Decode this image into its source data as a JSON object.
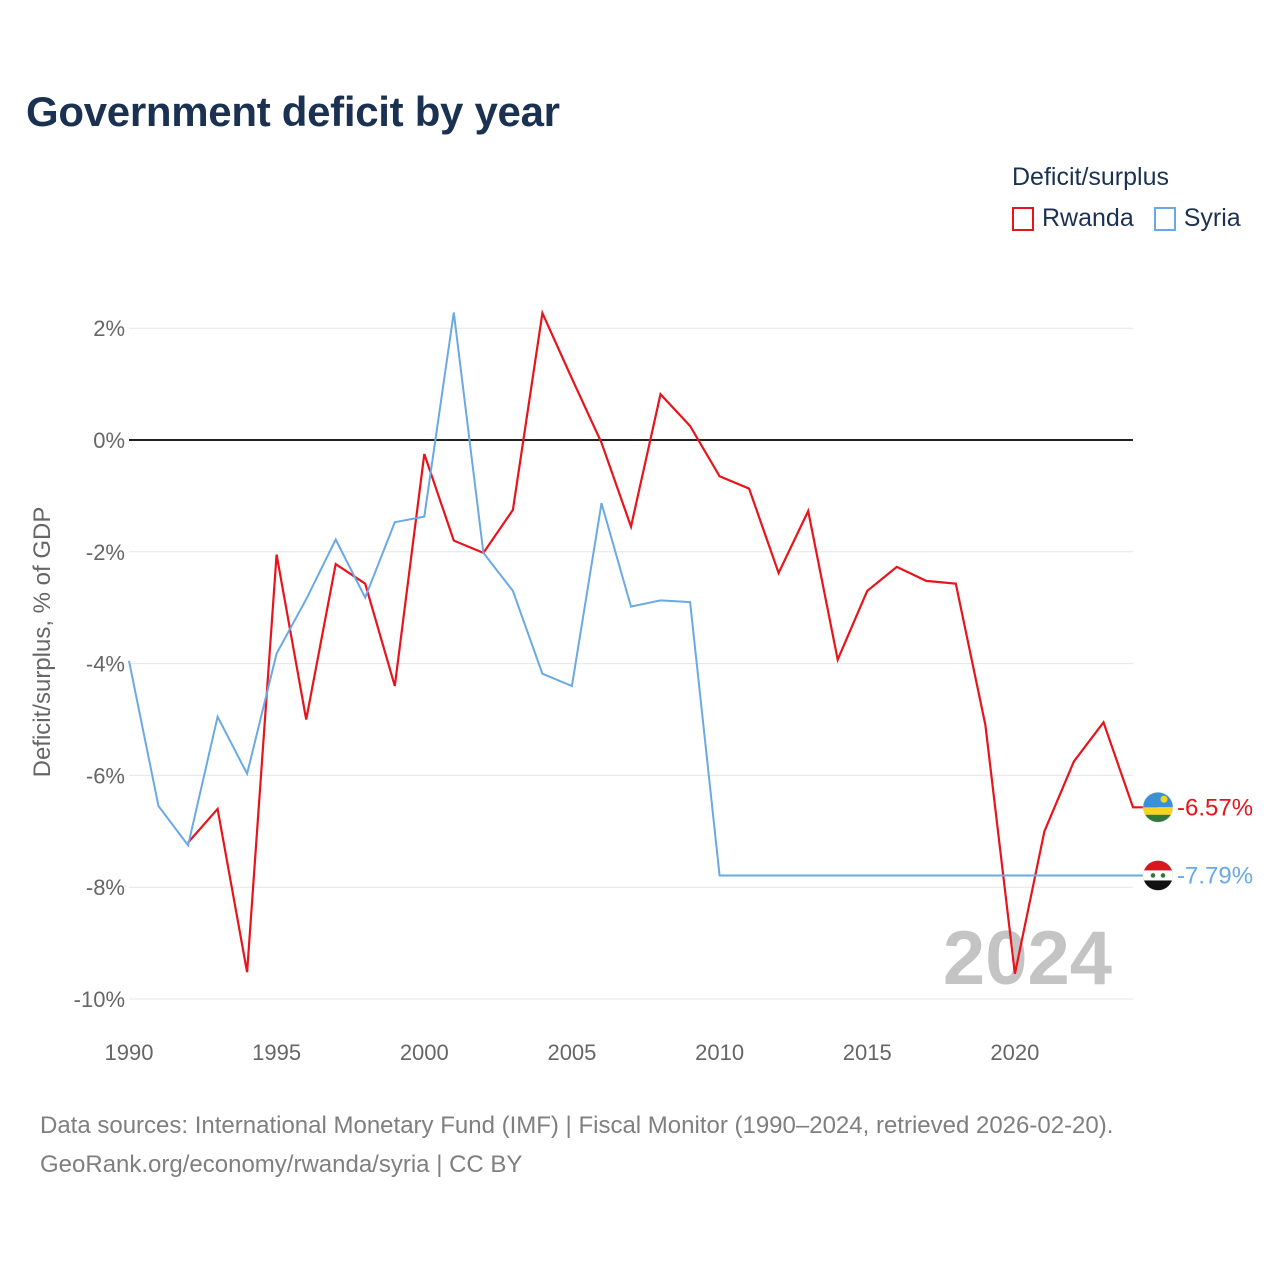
{
  "title": "Government deficit by year",
  "legend": {
    "title": "Deficit/surplus",
    "items": [
      {
        "label": "Rwanda",
        "color": "#e8141b"
      },
      {
        "label": "Syria",
        "color": "#6aa9e3"
      }
    ]
  },
  "footer": {
    "line1": "Data sources: International Monetary Fund (IMF) | Fiscal Monitor (1990–2024, retrieved 2026-02-20).",
    "line2": "GeoRank.org/economy/rwanda/syria | CC BY"
  },
  "chart_data": {
    "type": "line",
    "title": "Government deficit by year",
    "xlabel": "",
    "ylabel": "Deficit/surplus, % of GDP",
    "x": [
      1990,
      1991,
      1992,
      1993,
      1994,
      1995,
      1996,
      1997,
      1998,
      1999,
      2000,
      2001,
      2002,
      2003,
      2004,
      2005,
      2006,
      2007,
      2008,
      2009,
      2010,
      2011,
      2012,
      2013,
      2014,
      2015,
      2016,
      2017,
      2018,
      2019,
      2020,
      2021,
      2022,
      2023,
      2024
    ],
    "xlim": [
      1990,
      2024
    ],
    "ylim": [
      -10,
      2.6
    ],
    "x_ticks": [
      1990,
      1995,
      2000,
      2005,
      2010,
      2015,
      2020
    ],
    "y_ticks": [
      2,
      0,
      -2,
      -4,
      -6,
      -8,
      -10
    ],
    "y_tick_labels": [
      "2%",
      "0%",
      "-2%",
      "-4%",
      "-6%",
      "-8%",
      "-10%"
    ],
    "zero_line": true,
    "watermark_year": "2024",
    "series": [
      {
        "name": "Rwanda",
        "color": "#e8141b",
        "values": [
          null,
          null,
          -7.2,
          -6.6,
          -9.52,
          -2.05,
          -5.0,
          -2.22,
          -2.57,
          -4.4,
          -0.25,
          -1.8,
          -2.02,
          -1.25,
          2.27,
          1.1,
          -0.05,
          -1.55,
          0.82,
          0.25,
          -0.65,
          -0.87,
          -2.38,
          -1.27,
          -3.93,
          -2.7,
          -2.27,
          -2.52,
          -2.57,
          -5.1,
          -9.55,
          -7.0,
          -5.75,
          -5.05,
          -6.57
        ],
        "end_label": "-6.57%"
      },
      {
        "name": "Syria",
        "color": "#6aa9e3",
        "values": [
          -3.95,
          -6.55,
          -7.25,
          -4.95,
          -5.97,
          -3.82,
          -2.85,
          -1.78,
          -2.82,
          -1.47,
          -1.37,
          2.28,
          -2.02,
          -2.7,
          -4.18,
          -4.4,
          -1.13,
          -2.98,
          -2.87,
          -2.9,
          -7.79,
          -7.79,
          -7.79,
          -7.79,
          -7.79,
          -7.79,
          -7.79,
          -7.79,
          -7.79,
          -7.79,
          -7.79,
          -7.79,
          -7.79,
          -7.79,
          -7.79
        ],
        "end_label": "-7.79%"
      }
    ]
  }
}
